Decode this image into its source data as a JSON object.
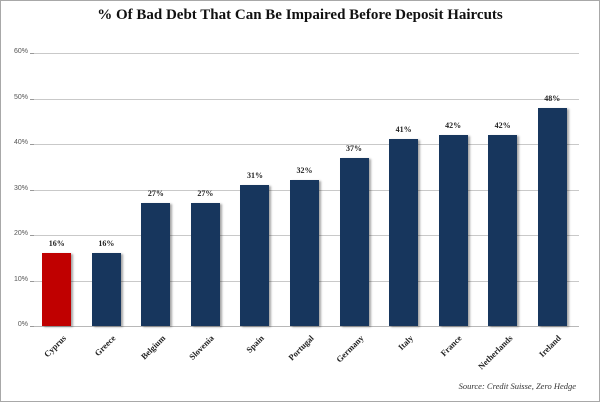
{
  "chart_data": {
    "type": "bar",
    "title": "% Of Bad Debt That Can Be Impaired Before Deposit Haircuts",
    "xlabel": "",
    "ylabel": "",
    "categories": [
      "Cyprus",
      "Greece",
      "Belgium",
      "Slovenia",
      "Spain",
      "Portugal",
      "Germany",
      "Italy",
      "France",
      "Netherlands",
      "Ireland"
    ],
    "values": [
      16,
      16,
      27,
      27,
      31,
      32,
      37,
      41,
      42,
      42,
      48
    ],
    "data_labels": [
      "16%",
      "16%",
      "27%",
      "27%",
      "31%",
      "32%",
      "37%",
      "41%",
      "42%",
      "42%",
      "48%"
    ],
    "bar_colors": [
      "#c00000",
      "#17365d",
      "#17365d",
      "#17365d",
      "#17365d",
      "#17365d",
      "#17365d",
      "#17365d",
      "#17365d",
      "#17365d",
      "#17365d"
    ],
    "ylim": [
      0,
      60
    ],
    "yticks": [
      0,
      10,
      20,
      30,
      40,
      50,
      60
    ],
    "ytick_labels": [
      "0%",
      "10%",
      "20%",
      "30%",
      "40%",
      "50%",
      "60%"
    ],
    "grid": true,
    "legend": null,
    "annotations": [
      "Source: Credit Suisse, Zero Hedge"
    ]
  },
  "title": "% Of Bad Debt That Can Be Impaired Before Deposit Haircuts",
  "source": "Source: Credit Suisse, Zero Hedge"
}
